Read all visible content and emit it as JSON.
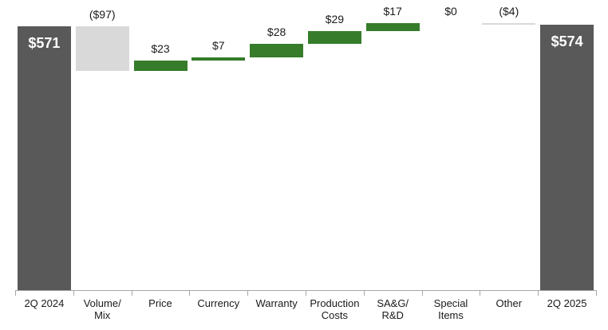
{
  "chart_data": {
    "type": "bar",
    "subtype": "waterfall",
    "title": "",
    "xlabel": "",
    "ylabel": "",
    "ylim": [
      0,
      627
    ],
    "grid": false,
    "legend": null,
    "categories": [
      "2Q 2024",
      "Volume/\nMix",
      "Price",
      "Currency",
      "Warranty",
      "Production\nCosts",
      "SA&G/\nR&D",
      "Special\nItems",
      "Other",
      "2Q 2025"
    ],
    "values": [
      571,
      -97,
      23,
      7,
      28,
      29,
      17,
      0,
      -4,
      574
    ],
    "bar_roles": [
      "total",
      "delta",
      "delta",
      "delta",
      "delta",
      "delta",
      "delta",
      "delta",
      "delta",
      "total"
    ],
    "value_labels": [
      "$571",
      "($97)",
      "$23",
      "$7",
      "$28",
      "$29",
      "$17",
      "$0",
      "($4)",
      "$574"
    ],
    "running_totals": [
      571,
      474,
      497,
      504,
      532,
      561,
      578,
      578,
      574,
      574
    ],
    "colors": {
      "total": "#595959",
      "positive": "#367C2B",
      "negative": "#D9D9D9",
      "axis": "#a6a6a6",
      "label_text": "#1a1a1a",
      "total_label_text": "#ffffff",
      "background": "#ffffff"
    }
  }
}
